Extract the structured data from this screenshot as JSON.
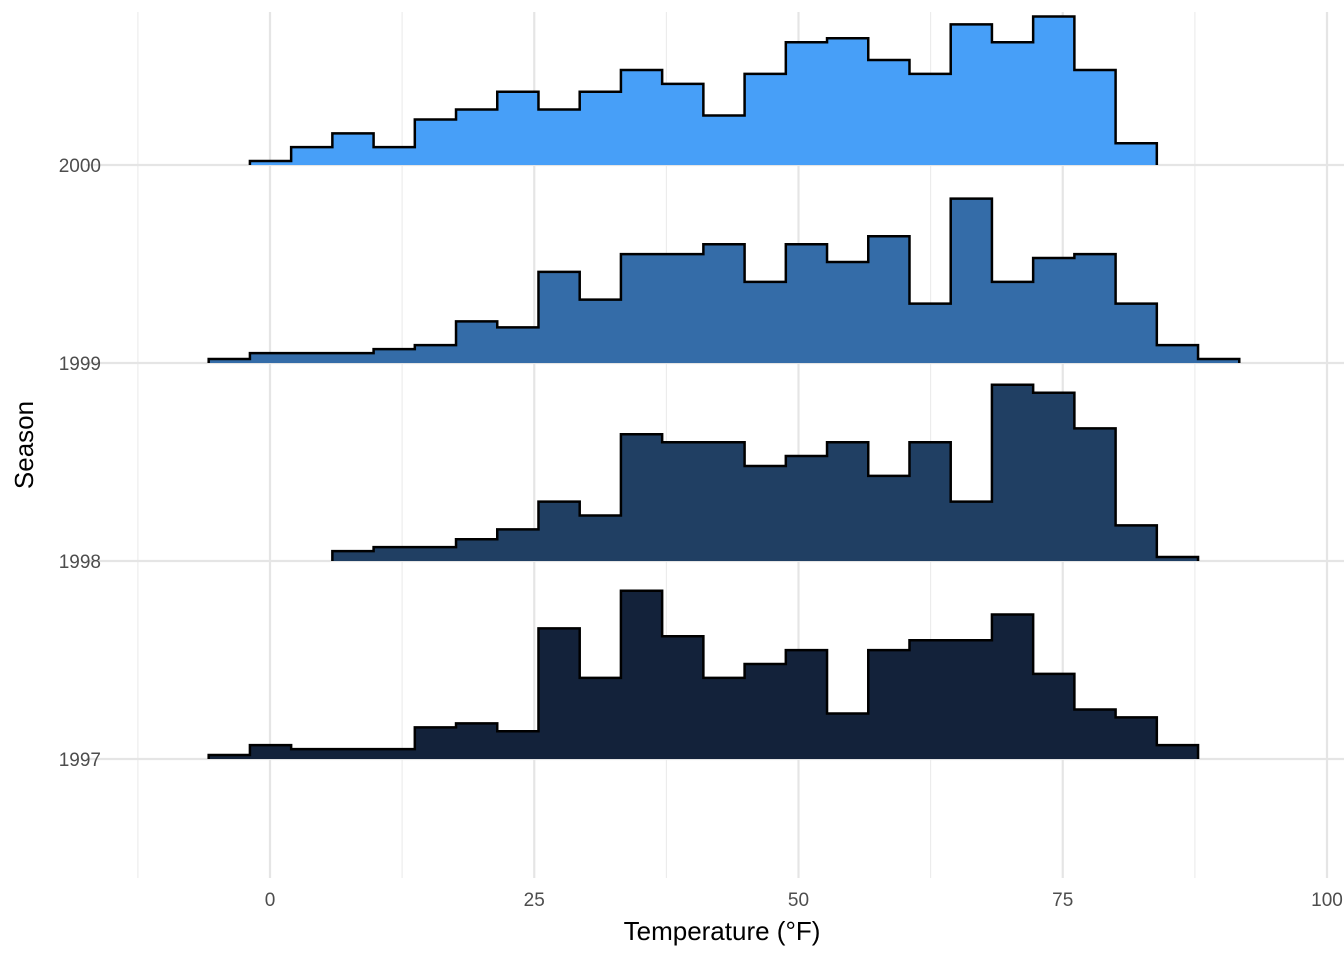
{
  "chart_data": {
    "type": "ridgeline-histogram",
    "title": "",
    "xlabel": "Temperature (°F)",
    "ylabel": "Season",
    "xlim": [
      -12.5,
      100
    ],
    "x_ticks": [
      0,
      25,
      50,
      75,
      100
    ],
    "x_tick_labels": [
      "0",
      "25",
      "50",
      "75",
      "100"
    ],
    "x_minor_ticks": [
      -12.5,
      12.5,
      37.5,
      62.5,
      87.5
    ],
    "grid": true,
    "legend": "none",
    "bin_edges": [
      -5.8,
      -1.9,
      2.0,
      5.9,
      9.8,
      13.7,
      17.6,
      21.5,
      25.4,
      29.3,
      33.2,
      37.1,
      41.0,
      44.9,
      48.8,
      52.7,
      56.6,
      60.5,
      64.4,
      68.3,
      72.2,
      76.1,
      80.0,
      83.9,
      87.8,
      91.7
    ],
    "series": [
      {
        "name": "1997",
        "color": "#13223A",
        "values": [
          0.02,
          0.07,
          0.05,
          0.05,
          0.05,
          0.16,
          0.18,
          0.14,
          0.66,
          0.41,
          0.85,
          0.62,
          0.41,
          0.48,
          0.55,
          0.23,
          0.55,
          0.6,
          0.6,
          0.73,
          0.43,
          0.25,
          0.21,
          0.07,
          0,
          0
        ]
      },
      {
        "name": "1998",
        "color": "#203F63",
        "values": [
          0,
          0,
          0,
          0.05,
          0.07,
          0.07,
          0.11,
          0.16,
          0.3,
          0.23,
          0.64,
          0.6,
          0.6,
          0.48,
          0.53,
          0.6,
          0.43,
          0.6,
          0.3,
          0.89,
          0.85,
          0.67,
          0.18,
          0.02,
          0,
          0
        ]
      },
      {
        "name": "1999",
        "color": "#346CA8",
        "values": [
          0.02,
          0.05,
          0.05,
          0.05,
          0.07,
          0.09,
          0.21,
          0.18,
          0.46,
          0.32,
          0.55,
          0.55,
          0.6,
          0.41,
          0.6,
          0.51,
          0.64,
          0.3,
          0.83,
          0.41,
          0.53,
          0.55,
          0.3,
          0.09,
          0.02,
          0
        ]
      },
      {
        "name": "2000",
        "color": "#479FF8",
        "values": [
          0,
          0.02,
          0.09,
          0.16,
          0.09,
          0.23,
          0.28,
          0.37,
          0.28,
          0.37,
          0.48,
          0.41,
          0.25,
          0.46,
          0.62,
          0.64,
          0.53,
          0.46,
          0.71,
          0.62,
          0.75,
          0.48,
          0.11,
          0,
          0,
          0
        ]
      }
    ]
  }
}
